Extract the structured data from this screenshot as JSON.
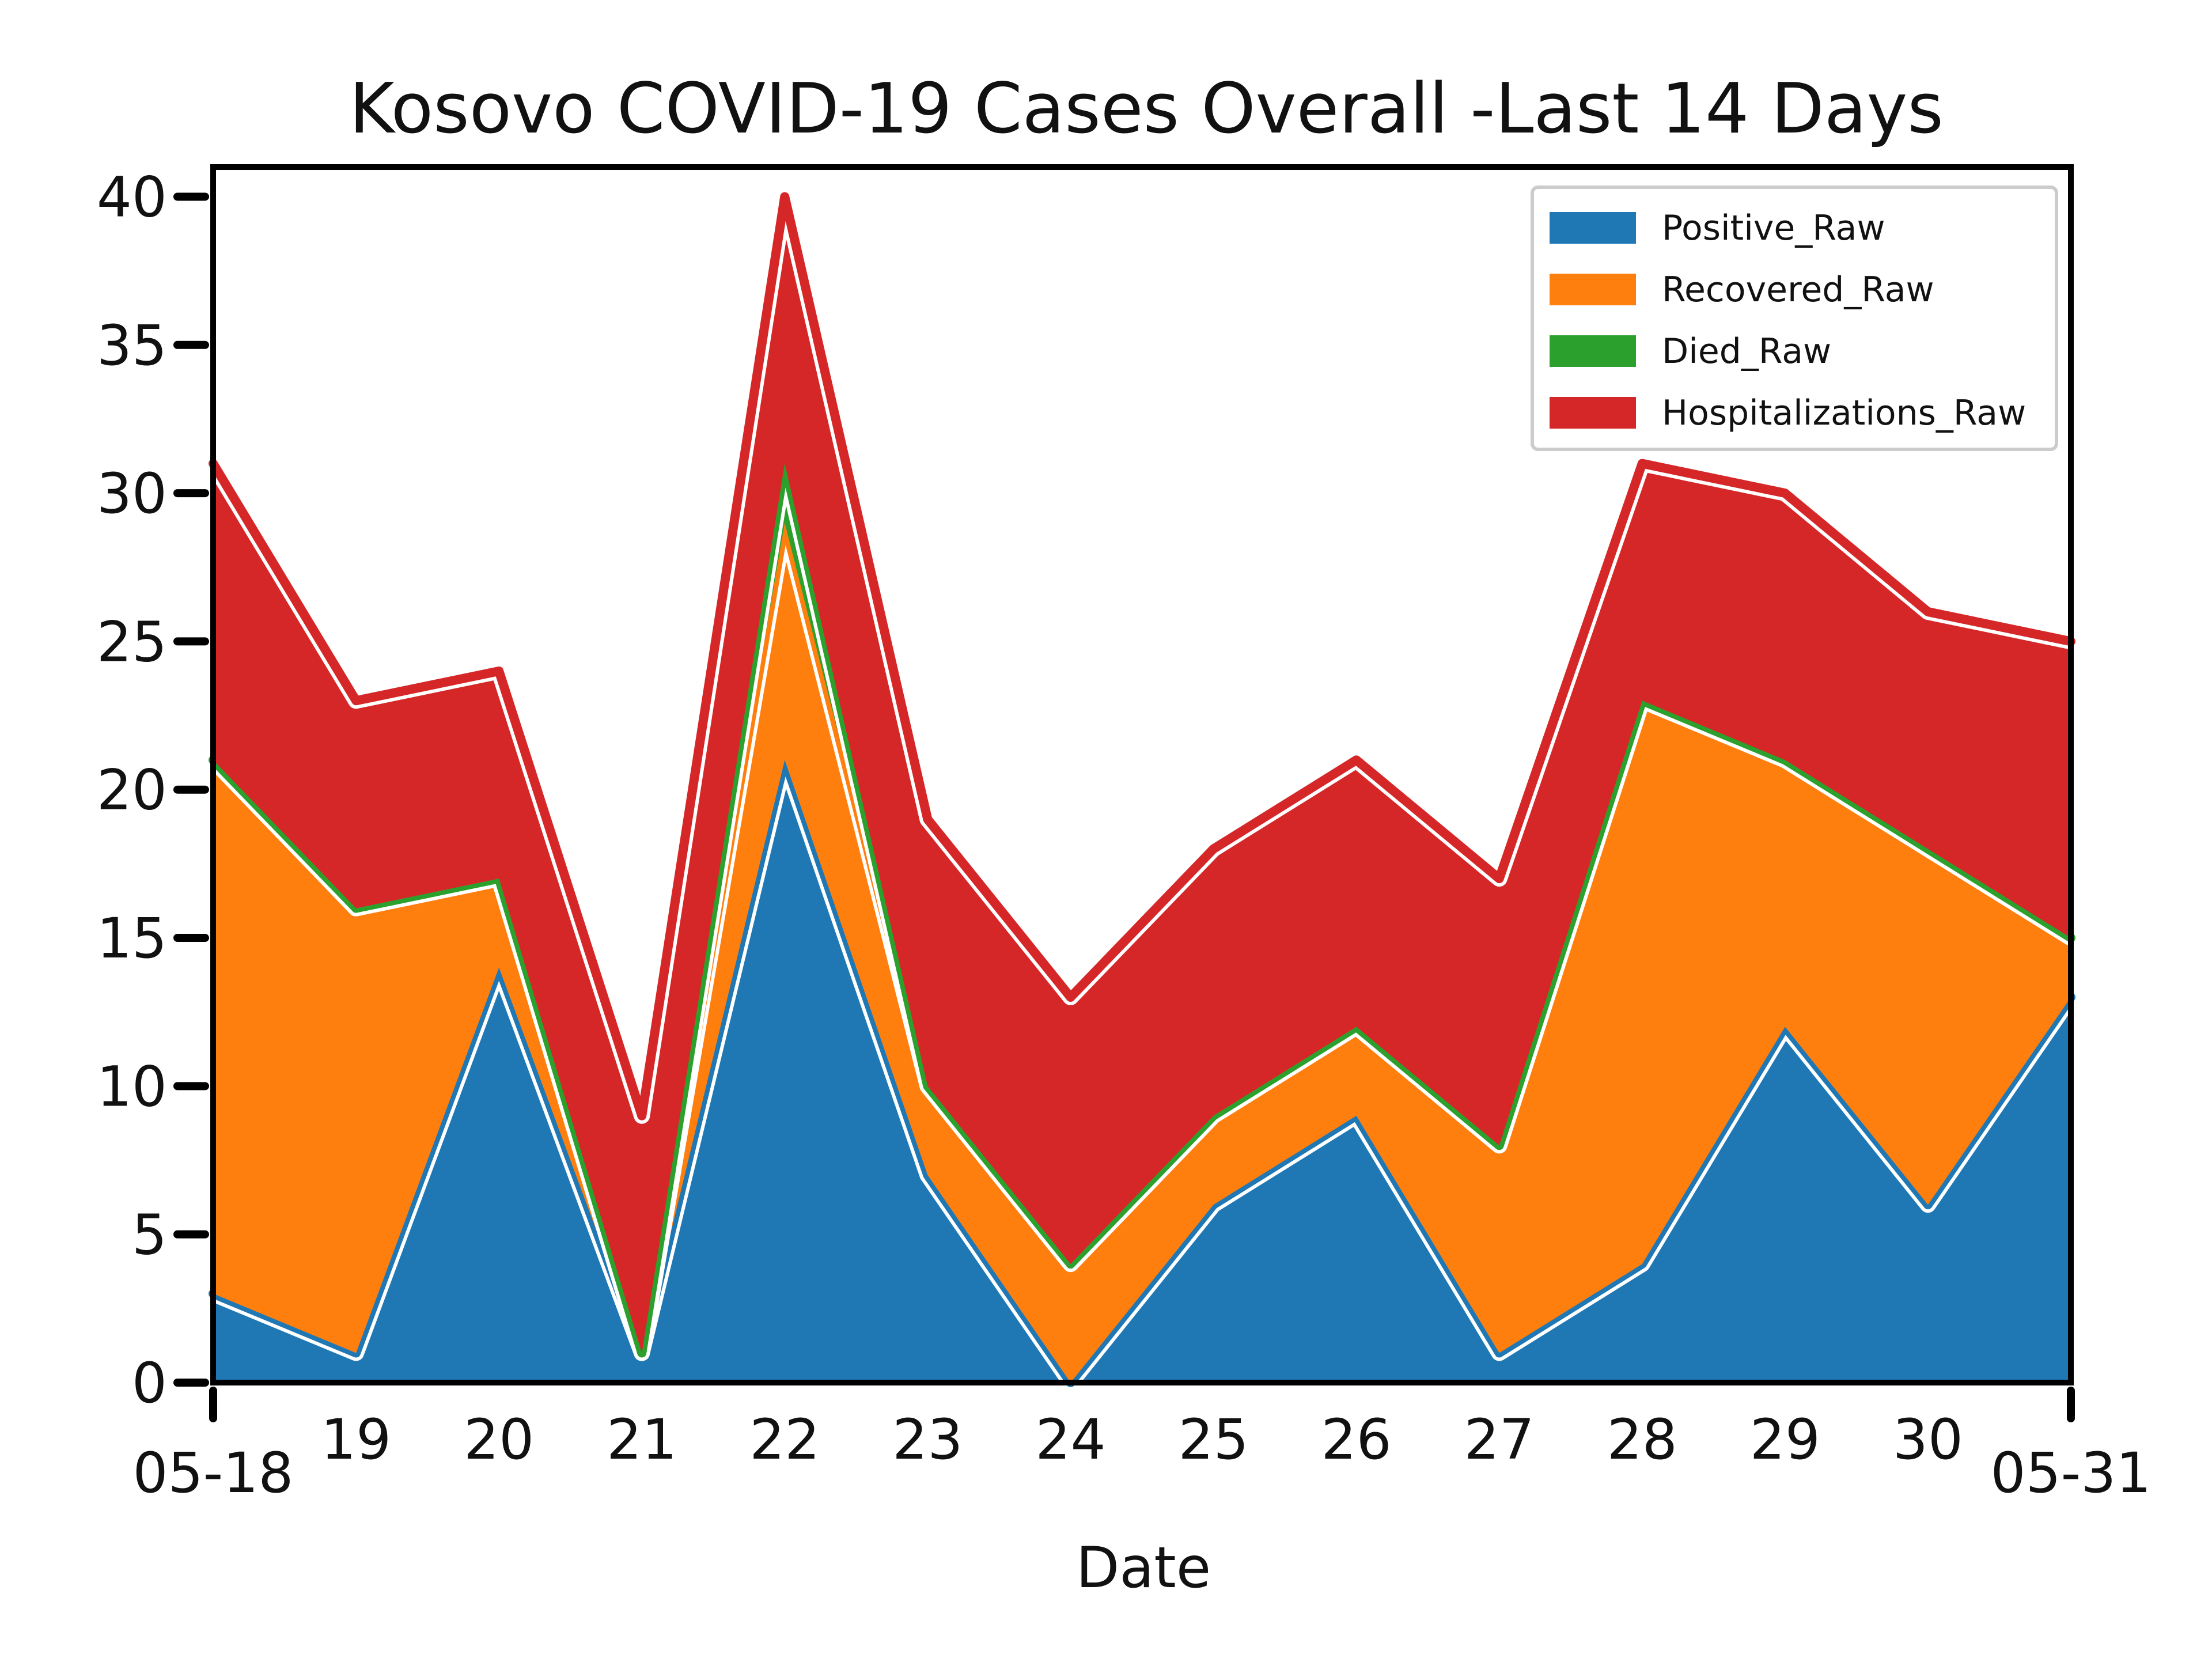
{
  "chart_data": {
    "type": "area",
    "stacked": true,
    "title": "Kosovo COVID-19 Cases Overall -Last 14 Days",
    "xlabel": "Date",
    "ylabel": "",
    "x": [
      "05-18",
      "19",
      "20",
      "21",
      "22",
      "23",
      "24",
      "25",
      "26",
      "27",
      "28",
      "29",
      "30",
      "05-31"
    ],
    "ylim": [
      0,
      41
    ],
    "yticks": [
      "0",
      "5",
      "10",
      "15",
      "20",
      "25",
      "30",
      "35",
      "40"
    ],
    "grid": false,
    "legend_position": "top-right",
    "series": [
      {
        "name": "Positive_Raw",
        "color": "#1f77b4",
        "values": [
          3,
          1,
          14,
          1,
          21,
          7,
          0,
          6,
          9,
          1,
          4,
          12,
          6,
          13
        ]
      },
      {
        "name": "Recovered_Raw",
        "color": "#ff7f0e",
        "values": [
          18,
          15,
          3,
          0,
          8,
          3,
          4,
          3,
          3,
          7,
          19,
          9,
          12,
          2
        ]
      },
      {
        "name": "Died_Raw",
        "color": "#2ca02c",
        "values": [
          0,
          0,
          0,
          0,
          2,
          0,
          0,
          0,
          0,
          0,
          0,
          0,
          0,
          0
        ]
      },
      {
        "name": "Hospitalizations_Raw",
        "color": "#d62728",
        "values": [
          10,
          7,
          7,
          8,
          9,
          9,
          9,
          9,
          9,
          9,
          8,
          9,
          8,
          10
        ]
      }
    ]
  }
}
